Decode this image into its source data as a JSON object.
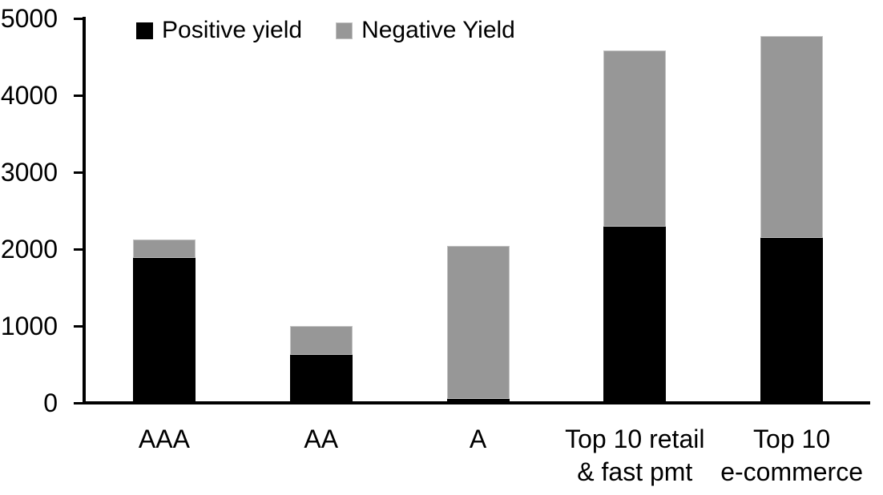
{
  "figure": {
    "background": "#ffffff",
    "text_color": "#000000"
  },
  "chart_data": {
    "type": "bar",
    "stacked": true,
    "title": "",
    "xlabel": "",
    "ylabel": "",
    "categories": [
      [
        "AAA"
      ],
      [
        "AA"
      ],
      [
        "A"
      ],
      [
        "Top 10 retail",
        "& fast pmt"
      ],
      [
        "Top 10",
        "e-commerce"
      ]
    ],
    "series": [
      {
        "name": "Positive yield",
        "color": "#000000",
        "values": [
          1890,
          620,
          50,
          2290,
          2150
        ]
      },
      {
        "name": "Negative Yield",
        "color": "#979797",
        "values": [
          235,
          380,
          1990,
          2290,
          2620
        ]
      }
    ],
    "ylim": [
      0,
      5000
    ],
    "yticks": [
      0,
      1000,
      2000,
      3000,
      4000,
      5000
    ],
    "grid": false,
    "legend_position": "top-left-inside"
  }
}
